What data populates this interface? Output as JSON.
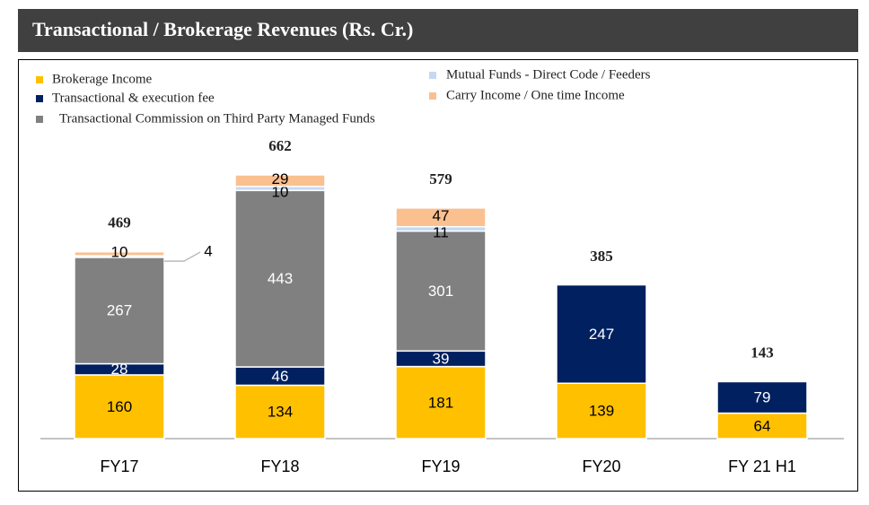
{
  "chart_data": {
    "type": "stacked_bar",
    "title": "Transactional / Brokerage Revenues (Rs. Cr.)",
    "categories": [
      "FY17",
      "FY18",
      "FY19",
      "FY20",
      "FY 21 H1"
    ],
    "series": [
      {
        "name": "Brokerage Income",
        "color": "#ffc000",
        "values": [
          160,
          134,
          181,
          139,
          64
        ]
      },
      {
        "name": "Transactional & execution fee",
        "color": "#002060",
        "values": [
          28,
          46,
          39,
          247,
          79
        ]
      },
      {
        "name": "Transactional Commission on Third Party Managed Funds",
        "color": "#808080",
        "values": [
          267,
          443,
          301,
          null,
          null
        ]
      },
      {
        "name": "Mutual Funds - Direct Code / Feeders",
        "color": "#c5d9f1",
        "values": [
          4,
          10,
          11,
          null,
          null
        ]
      },
      {
        "name": "Carry Income / One time Income",
        "color": "#fac090",
        "values": [
          10,
          29,
          47,
          null,
          null
        ]
      }
    ],
    "totals": [
      469,
      662,
      579,
      385,
      143
    ]
  }
}
